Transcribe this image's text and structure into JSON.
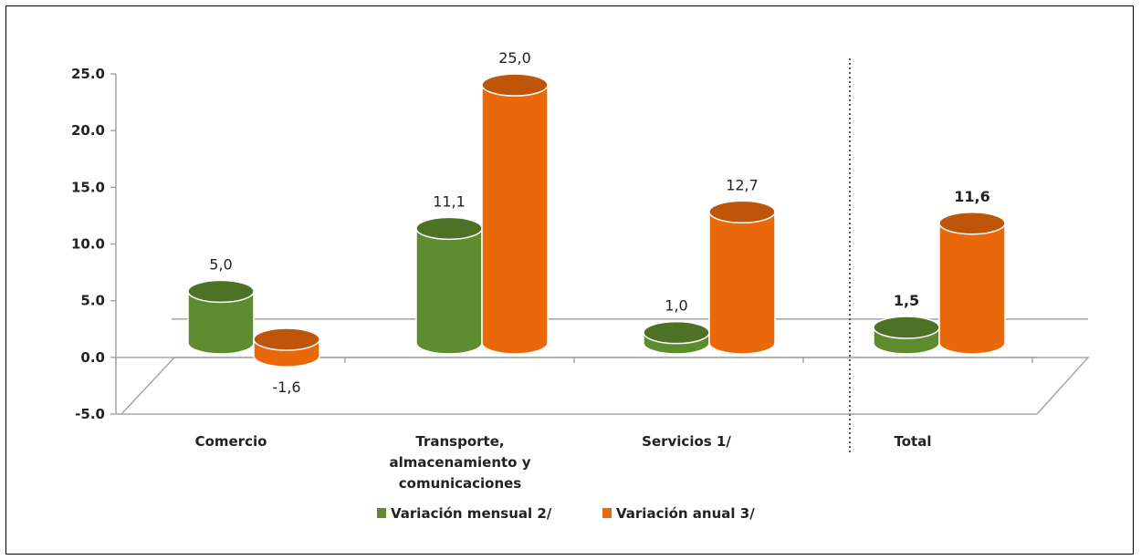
{
  "chart_data": {
    "type": "bar",
    "categories": [
      "Comercio",
      [
        "Transporte,",
        "almacenamiento y",
        "comunicaciones"
      ],
      "Servicios 1/",
      "Total"
    ],
    "series": [
      {
        "name": "Variación mensual 2/",
        "color": "#5e8b2e",
        "values": [
          5.0,
          11.1,
          1.0,
          1.5
        ],
        "labels": [
          "5,0",
          "11,1",
          "1,0",
          "1,5"
        ]
      },
      {
        "name": "Variación anual 3/",
        "color": "#e8680a",
        "values": [
          -1.6,
          25.0,
          12.7,
          11.6
        ],
        "labels": [
          "-1,6",
          "25,0",
          "12,7",
          "11,6"
        ]
      }
    ],
    "bold_label_categories": [
      3
    ],
    "yticks": [
      "25.0",
      "20.0",
      "15.0",
      "10.0",
      "5.0",
      "0.0",
      "-5.0"
    ],
    "ylim": [
      -5,
      25
    ],
    "legend_position": "bottom",
    "separator_before_category": 3
  }
}
